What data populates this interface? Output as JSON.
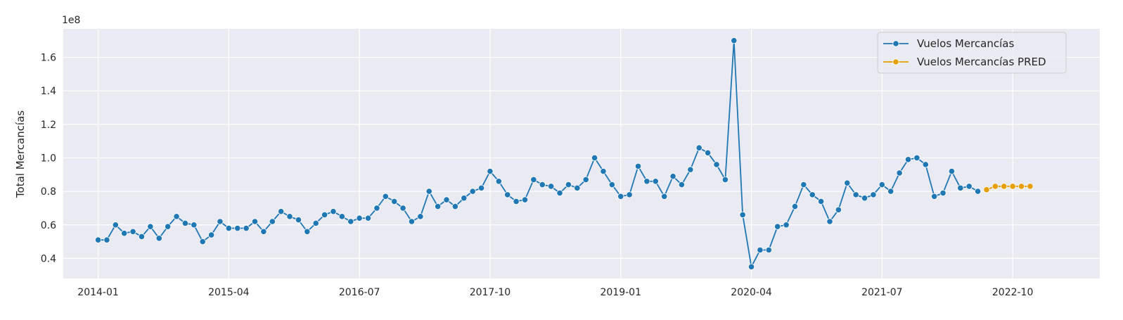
{
  "chart_data": {
    "type": "line",
    "title": "",
    "xlabel": "",
    "ylabel": "Total Mercancías",
    "y_offset_label": "1e8",
    "y_scale_factor": 100000000,
    "ylim": [
      0.28,
      1.77
    ],
    "xlim": [
      "2013-09",
      "2023-08"
    ],
    "grid": true,
    "legend_position": "top-right",
    "x_ticks": [
      "2014-01",
      "2015-04",
      "2016-07",
      "2017-10",
      "2019-01",
      "2020-04",
      "2021-07",
      "2022-10"
    ],
    "y_ticks": [
      "0.4",
      "0.6",
      "0.8",
      "1.0",
      "1.2",
      "1.4",
      "1.6"
    ],
    "series": [
      {
        "name": "Vuelos Mercancías",
        "color": "#1f77b4",
        "start": "2014-01",
        "values": [
          0.51,
          0.51,
          0.6,
          0.55,
          0.56,
          0.53,
          0.59,
          0.52,
          0.59,
          0.65,
          0.61,
          0.6,
          0.5,
          0.54,
          0.62,
          0.58,
          0.58,
          0.58,
          0.62,
          0.56,
          0.62,
          0.68,
          0.65,
          0.63,
          0.56,
          0.61,
          0.66,
          0.68,
          0.65,
          0.62,
          0.64,
          0.64,
          0.7,
          0.77,
          0.74,
          0.7,
          0.62,
          0.65,
          0.8,
          0.71,
          0.75,
          0.71,
          0.76,
          0.8,
          0.82,
          0.92,
          0.86,
          0.78,
          0.74,
          0.75,
          0.87,
          0.84,
          0.83,
          0.79,
          0.84,
          0.82,
          0.87,
          1.0,
          0.92,
          0.84,
          0.77,
          0.78,
          0.95,
          0.86,
          0.86,
          0.77,
          0.89,
          0.84,
          0.93,
          1.06,
          1.03,
          0.96,
          0.87,
          1.7,
          0.66,
          0.35,
          0.45,
          0.45,
          0.59,
          0.6,
          0.71,
          0.84,
          0.78,
          0.74,
          0.62,
          0.69,
          0.85,
          0.78,
          0.76,
          0.78,
          0.84,
          0.8,
          0.91,
          0.99,
          1.0,
          0.96,
          0.77,
          0.79,
          0.92,
          0.82,
          0.83,
          0.8
        ]
      },
      {
        "name": "Vuelos Mercancías PRED",
        "color": "#e69f00",
        "start": "2022-07",
        "values": [
          0.81,
          0.83,
          0.83,
          0.83,
          0.83,
          0.83
        ]
      }
    ]
  }
}
